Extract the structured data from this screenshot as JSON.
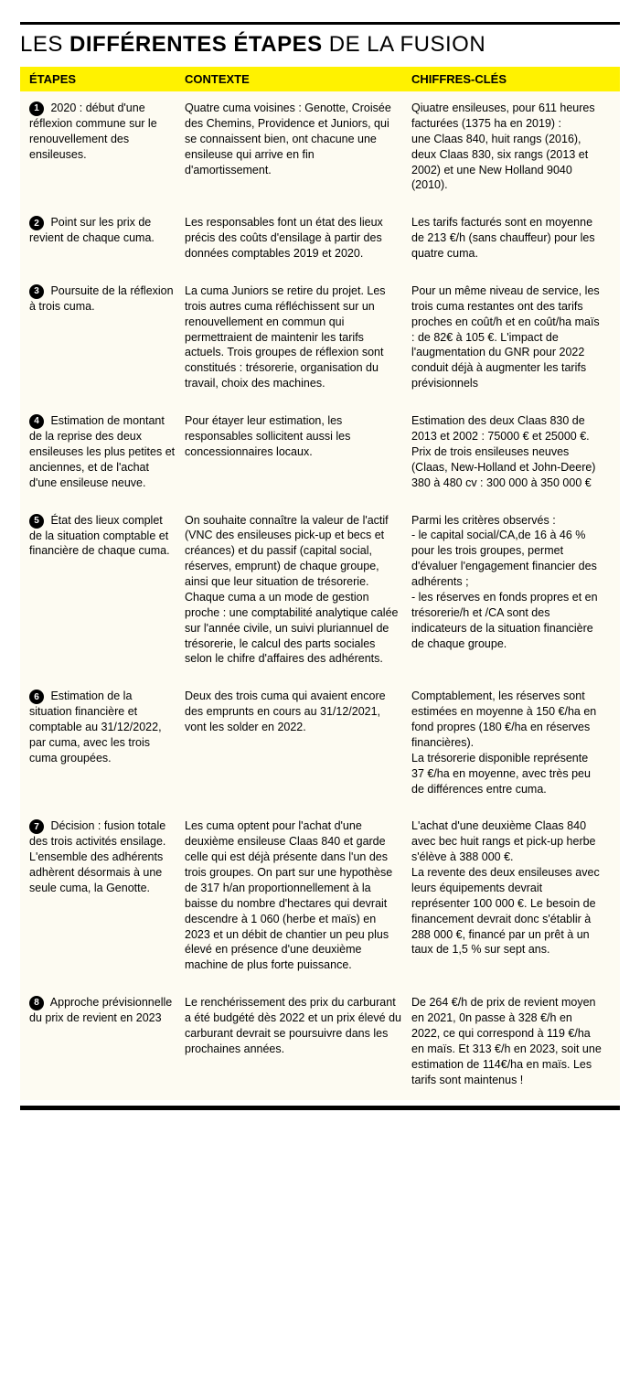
{
  "title": {
    "pre": "LES ",
    "bold": "DIFFÉRENTES ÉTAPES",
    "post": " DE LA FUSION"
  },
  "headers": {
    "etape": "ÉTAPES",
    "contexte": "CONTEXTE",
    "chiffres": "CHIFFRES-CLÉS"
  },
  "colors": {
    "header_bg": "#fff200",
    "body_bg": "#fdfbf2",
    "text": "#000000"
  },
  "rows": [
    {
      "num": "1",
      "etape": "2020 : début d'une réflexion commune sur le renouvellement des ensileuses.",
      "contexte": "Quatre cuma voisines : Genotte, Croisée des Chemins, Providence et Juniors, qui se connaissent bien, ont chacune une ensileuse qui arrive en fin d'amortissement.",
      "chiffres": "Qiuatre ensileuses, pour 611 heures facturées (1375 ha en 2019) :\nune Claas 840, huit rangs (2016), deux Claas 830, six rangs (2013 et 2002) et une New Holland 9040 (2010)."
    },
    {
      "num": "2",
      "etape": "Point sur les prix de revient de chaque cuma.",
      "contexte": "Les responsables font un état des lieux précis des coûts d'ensilage à partir des données comptables 2019 et 2020.",
      "chiffres": "Les tarifs facturés sont en moyenne de 213 €/h (sans chauffeur) pour les quatre cuma."
    },
    {
      "num": "3",
      "etape": "Poursuite de la réflexion à trois cuma.",
      "contexte": "La cuma Juniors se retire du projet. Les trois autres cuma réfléchissent sur un renouvellement en commun qui permettraient de maintenir les tarifs actuels. Trois groupes de réflexion sont constitués : trésorerie, organisation du travail, choix des machines.",
      "chiffres": "Pour un même niveau de service, les trois cuma restantes ont des tarifs proches en coût/h et en coût/ha maïs : de 82€ à 105 €. L'impact de l'augmentation du GNR pour 2022 conduit déjà à augmenter les tarifs prévisionnels"
    },
    {
      "num": "4",
      "etape": "Estimation de montant de la reprise des deux ensileuses les plus petites et anciennes, et de l'achat d'une ensileuse neuve.",
      "contexte": "Pour étayer leur estimation, les responsables sollicitent aussi les concessionnaires locaux.",
      "chiffres": "Estimation des deux Claas 830 de 2013 et 2002 : 75000 € et 25000 €.\nPrix de trois ensileuses neuves (Claas, New-Holland et John-Deere) 380 à 480 cv : 300 000 à 350 000 €"
    },
    {
      "num": "5",
      "etape": "État des lieux complet de la situation comptable et financière de chaque cuma.",
      "contexte": "On souhaite connaître la valeur de l'actif (VNC des ensileuses pick-up et becs et créances) et du passif (capital social, réserves, emprunt) de chaque groupe, ainsi que leur situation de trésorerie.\nChaque cuma a un mode de gestion proche : une comptabilité analytique calée sur l'année civile, un suivi pluriannuel de trésorerie, le calcul des parts sociales selon le chifre d'affaires des adhérents.",
      "chiffres": "Parmi les critères observés :\n- le capital social/CA,de 16 à 46 % pour les trois groupes, permet d'évaluer l'engagement financier des adhérents ;\n- les réserves en fonds propres et en trésorerie/h et /CA sont des indicateurs de la situation financière de chaque groupe."
    },
    {
      "num": "6",
      "etape": "Estimation de la situation financière et comptable au 31/12/2022, par cuma, avec les trois cuma groupées.",
      "contexte": "Deux des trois cuma qui avaient encore des emprunts en cours au 31/12/2021, vont les solder en 2022.",
      "chiffres": "Comptablement, les réserves sont estimées en moyenne à 150 €/ha en fond propres (180 €/ha en réserves financières).\nLa trésorerie disponible représente 37 €/ha en moyenne, avec très peu de différences entre cuma."
    },
    {
      "num": "7",
      "etape": "Décision : fusion totale des trois activités ensilage. L'ensemble des adhérents adhèrent désormais à une seule cuma, la Genotte.",
      "contexte": "Les cuma optent pour l'achat d'une deuxième ensileuse Claas 840 et garde celle qui est déjà présente dans l'un des trois groupes. On part sur une hypothèse de 317 h/an proportionnellement à la baisse du nombre d'hectares qui devrait descendre à 1 060 (herbe et maïs) en 2023 et un débit de chantier un peu plus élevé en présence d'une deuxième machine de plus forte puissance.",
      "chiffres": "L'achat d'une deuxième Claas 840 avec bec huit rangs et pick-up herbe s'élève à 388 000 €.\nLa revente des deux ensileuses avec leurs équipements devrait représenter 100 000 €. Le besoin de financement devrait donc s'établir à 288 000 €, financé par un prêt à un taux de 1,5 % sur sept ans."
    },
    {
      "num": "8",
      "etape": "Approche prévisionnelle du prix de revient en 2023",
      "contexte": "Le renchérissement des prix du carburant a été budgété dès 2022 et un prix élevé du carburant devrait se poursuivre dans les prochaines années.",
      "chiffres": "De 264 €/h de prix de revient moyen en 2021, 0n passe à 328 €/h en 2022, ce qui correspond à 119 €/ha en maïs. Et 313 €/h en 2023, soit une estimation de 114€/ha en maïs. Les tarifs sont maintenus !"
    }
  ]
}
